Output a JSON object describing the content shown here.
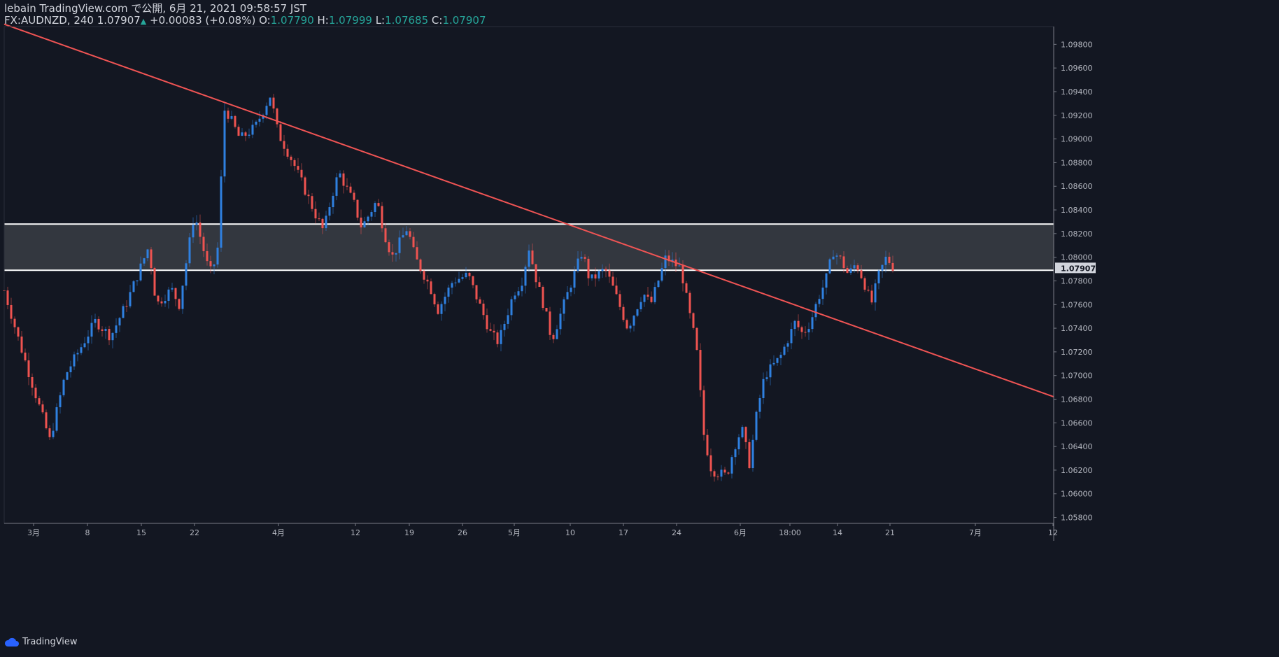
{
  "header": {
    "line1": "lebain TradingView.com で公開, 6月 21, 2021 09:58:57 JST",
    "symbol": "FX:AUDNZD, 240",
    "last": "1.07907",
    "change": "+0.00083 (+0.08%)",
    "o_label": "O:",
    "open": "1.07790",
    "h_label": "H:",
    "high": "1.07999",
    "l_label": "L:",
    "low": "1.07685",
    "c_label": "C:",
    "close": "1.07907"
  },
  "footer": {
    "brand": "TradingView",
    "logo_icon": "tradingview-cloud-icon"
  },
  "colors": {
    "background": "#131722",
    "up": "#2f80e0",
    "down": "#ef5350",
    "trendline": "#f05454",
    "zone": "#3a3d44",
    "zone_line": "#ffffff",
    "axis_text": "#b2b5be"
  },
  "chart_data": {
    "type": "candlestick",
    "title": "FX:AUDNZD, 240",
    "x_ticks": [
      "3月",
      "8",
      "15",
      "22",
      "4月",
      "12",
      "19",
      "26",
      "5月",
      "10",
      "17",
      "24",
      "6月",
      "18:00",
      "14",
      "21",
      "7月",
      "12"
    ],
    "y_ticks": [
      "1.09800",
      "1.09600",
      "1.09400",
      "1.09200",
      "1.09000",
      "1.08800",
      "1.08600",
      "1.08400",
      "1.08200",
      "1.08000",
      "1.07800",
      "1.07600",
      "1.07400",
      "1.07200",
      "1.07000",
      "1.06800",
      "1.06600",
      "1.06400",
      "1.06200",
      "1.06000",
      "1.05800"
    ],
    "ylim": [
      1.0575,
      1.0995
    ],
    "last_price_label": "1.07907",
    "last_price": 1.07907,
    "resistance_zone": [
      1.0789,
      1.0828
    ],
    "trendline": [
      {
        "x": "2021-02-24",
        "y": 1.0997
      },
      {
        "x": "2021-07-12",
        "y": 1.0682
      }
    ],
    "price_path": [
      {
        "x": "2021-02-24",
        "y": 1.0772
      },
      {
        "x": "2021-02-26",
        "y": 1.0728
      },
      {
        "x": "2021-03-02",
        "y": 1.0645
      },
      {
        "x": "2021-03-04",
        "y": 1.07
      },
      {
        "x": "2021-03-08",
        "y": 1.0746
      },
      {
        "x": "2021-03-10",
        "y": 1.0733
      },
      {
        "x": "2021-03-12",
        "y": 1.076
      },
      {
        "x": "2021-03-15",
        "y": 1.0809
      },
      {
        "x": "2021-03-16",
        "y": 1.076
      },
      {
        "x": "2021-03-18",
        "y": 1.0773
      },
      {
        "x": "2021-03-19",
        "y": 1.076
      },
      {
        "x": "2021-03-21",
        "y": 1.0837
      },
      {
        "x": "2021-03-23",
        "y": 1.0786
      },
      {
        "x": "2021-03-24",
        "y": 1.08
      },
      {
        "x": "2021-03-25",
        "y": 1.0927
      },
      {
        "x": "2021-03-27",
        "y": 1.09
      },
      {
        "x": "2021-03-29",
        "y": 1.091
      },
      {
        "x": "2021-03-31",
        "y": 1.0937
      },
      {
        "x": "2021-04-01",
        "y": 1.0905
      },
      {
        "x": "2021-04-03",
        "y": 1.088
      },
      {
        "x": "2021-04-06",
        "y": 1.0835
      },
      {
        "x": "2021-04-07",
        "y": 1.0822
      },
      {
        "x": "2021-04-08",
        "y": 1.085
      },
      {
        "x": "2021-04-09",
        "y": 1.0872
      },
      {
        "x": "2021-04-11",
        "y": 1.0845
      },
      {
        "x": "2021-04-12",
        "y": 1.0825
      },
      {
        "x": "2021-04-14",
        "y": 1.0848
      },
      {
        "x": "2021-04-15",
        "y": 1.082
      },
      {
        "x": "2021-04-16",
        "y": 1.08
      },
      {
        "x": "2021-04-18",
        "y": 1.0825
      },
      {
        "x": "2021-04-19",
        "y": 1.08
      },
      {
        "x": "2021-04-21",
        "y": 1.0775
      },
      {
        "x": "2021-04-22",
        "y": 1.0755
      },
      {
        "x": "2021-04-24",
        "y": 1.078
      },
      {
        "x": "2021-04-26",
        "y": 1.0785
      },
      {
        "x": "2021-04-27",
        "y": 1.0768
      },
      {
        "x": "2021-04-29",
        "y": 1.0735
      },
      {
        "x": "2021-04-30",
        "y": 1.0728
      },
      {
        "x": "2021-05-02",
        "y": 1.077
      },
      {
        "x": "2021-05-03",
        "y": 1.0778
      },
      {
        "x": "2021-05-04",
        "y": 1.0808
      },
      {
        "x": "2021-05-05",
        "y": 1.078
      },
      {
        "x": "2021-05-06",
        "y": 1.0758
      },
      {
        "x": "2021-05-07",
        "y": 1.073
      },
      {
        "x": "2021-05-09",
        "y": 1.0768
      },
      {
        "x": "2021-05-11",
        "y": 1.0805
      },
      {
        "x": "2021-05-12",
        "y": 1.078
      },
      {
        "x": "2021-05-14",
        "y": 1.079
      },
      {
        "x": "2021-05-15",
        "y": 1.0775
      },
      {
        "x": "2021-05-17",
        "y": 1.074
      },
      {
        "x": "2021-05-19",
        "y": 1.077
      },
      {
        "x": "2021-05-20",
        "y": 1.076
      },
      {
        "x": "2021-05-22",
        "y": 1.08
      },
      {
        "x": "2021-05-24",
        "y": 1.079
      },
      {
        "x": "2021-05-25",
        "y": 1.0755
      },
      {
        "x": "2021-05-26",
        "y": 1.0725
      },
      {
        "x": "2021-05-27",
        "y": 1.065
      },
      {
        "x": "2021-05-28",
        "y": 1.062
      },
      {
        "x": "2021-05-30",
        "y": 1.0615
      },
      {
        "x": "2021-05-31",
        "y": 1.064
      },
      {
        "x": "2021-06-01",
        "y": 1.0655
      },
      {
        "x": "2021-06-02",
        "y": 1.0625
      },
      {
        "x": "2021-06-03",
        "y": 1.067
      },
      {
        "x": "2021-06-04",
        "y": 1.07
      },
      {
        "x": "2021-06-06",
        "y": 1.0715
      },
      {
        "x": "2021-06-07",
        "y": 1.073
      },
      {
        "x": "2021-06-08",
        "y": 1.0745
      },
      {
        "x": "2021-06-09",
        "y": 1.0735
      },
      {
        "x": "2021-06-10",
        "y": 1.0745
      },
      {
        "x": "2021-06-11",
        "y": 1.0765
      },
      {
        "x": "2021-06-12",
        "y": 1.078
      },
      {
        "x": "2021-06-13",
        "y": 1.0805
      },
      {
        "x": "2021-06-14",
        "y": 1.0798
      },
      {
        "x": "2021-06-15",
        "y": 1.0785
      },
      {
        "x": "2021-06-16",
        "y": 1.0795
      },
      {
        "x": "2021-06-17",
        "y": 1.078
      },
      {
        "x": "2021-06-18",
        "y": 1.076
      },
      {
        "x": "2021-06-19",
        "y": 1.0785
      },
      {
        "x": "2021-06-20",
        "y": 1.08
      },
      {
        "x": "2021-06-21",
        "y": 1.07907
      }
    ]
  }
}
